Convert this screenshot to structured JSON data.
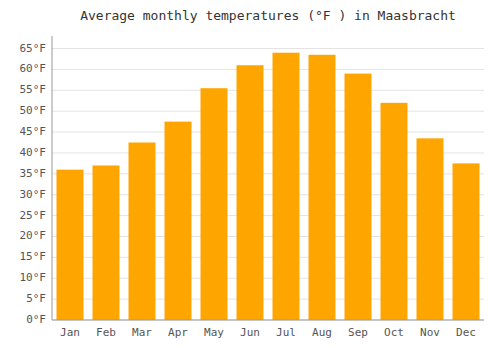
{
  "chart_data": {
    "type": "bar",
    "title": "Average monthly temperatures (°F ) in Maasbracht",
    "categories": [
      "Jan",
      "Feb",
      "Mar",
      "Apr",
      "May",
      "Jun",
      "Jul",
      "Aug",
      "Sep",
      "Oct",
      "Nov",
      "Dec"
    ],
    "values": [
      36,
      37,
      42.5,
      47.5,
      55.5,
      61,
      64,
      63.5,
      59,
      52,
      43.5,
      37.5
    ],
    "color": "#FFA500",
    "ylim": [
      0,
      68
    ],
    "yticks": [
      {
        "value": 0,
        "label": "0°F"
      },
      {
        "value": 5,
        "label": "5°F"
      },
      {
        "value": 10,
        "label": "10°F"
      },
      {
        "value": 15,
        "label": "15°F"
      },
      {
        "value": 20,
        "label": "20°F"
      },
      {
        "value": 25,
        "label": "25°F"
      },
      {
        "value": 30,
        "label": "30°F"
      },
      {
        "value": 35,
        "label": "35°F"
      },
      {
        "value": 40,
        "label": "40°F"
      },
      {
        "value": 45,
        "label": "45°F"
      },
      {
        "value": 50,
        "label": "50°F"
      },
      {
        "value": 55,
        "label": "55°F"
      },
      {
        "value": 60,
        "label": "60°F"
      },
      {
        "value": 65,
        "label": "65°F"
      }
    ],
    "grid": true
  }
}
